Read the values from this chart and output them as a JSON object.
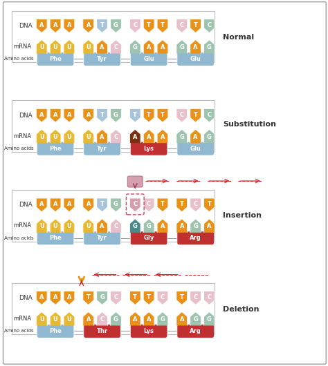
{
  "bg_color": "#ffffff",
  "orange": "#E8921A",
  "yellow": "#E8B830",
  "light_blue": "#A8C4D8",
  "light_green": "#9EC4B0",
  "light_pink": "#E8C0CC",
  "teal_dark": "#4A8A8A",
  "red": "#CC2222",
  "pink_insert": "#D4A0B0",
  "brown_sub": "#7A3010",
  "amino_blue": "#90B8D0",
  "amino_red": "#C03030",
  "border_color": "#aaaaaa",
  "text_color": "#333333",
  "figsize": [
    4.74,
    5.3
  ],
  "dpi": 100,
  "sections": {
    "normal": {
      "label": "Normal",
      "dna": [
        "A",
        "A",
        "A",
        "A",
        "T",
        "G",
        "C",
        "T",
        "T",
        "C",
        "T",
        "C"
      ],
      "mrna": [
        "U",
        "U",
        "U",
        "U",
        "A",
        "C",
        "G",
        "A",
        "A",
        "G",
        "A",
        "G"
      ],
      "dna_colors": [
        "or",
        "or",
        "or",
        "or",
        "lb",
        "lg",
        "lp",
        "or",
        "or",
        "lp",
        "or",
        "lg"
      ],
      "mrna_colors": [
        "yw",
        "yw",
        "yw",
        "yw",
        "or",
        "lp",
        "lg",
        "or",
        "or",
        "lg",
        "or",
        "lg"
      ],
      "amino_labels": [
        "Phe",
        "Tyr",
        "Glu",
        "Glu"
      ],
      "amino_colors": [
        "blue",
        "blue",
        "blue",
        "blue"
      ],
      "spacers": [
        2,
        5,
        8
      ]
    },
    "substitution": {
      "label": "Substitution",
      "dna": [
        "A",
        "A",
        "A",
        "A",
        "T",
        "G",
        "T",
        "T",
        "T",
        "C",
        "T",
        "C"
      ],
      "mrna": [
        "U",
        "U",
        "U",
        "U",
        "A",
        "C",
        "A",
        "A",
        "A",
        "G",
        "A",
        "G"
      ],
      "dna_colors": [
        "or",
        "or",
        "or",
        "or",
        "lb",
        "lg",
        "lb",
        "or",
        "or",
        "lp",
        "or",
        "lg"
      ],
      "mrna_colors": [
        "yw",
        "yw",
        "yw",
        "yw",
        "or",
        "lp",
        "br",
        "or",
        "or",
        "lg",
        "or",
        "lg"
      ],
      "amino_labels": [
        "Phe",
        "Tyr",
        "Lys",
        "Glu"
      ],
      "amino_colors": [
        "blue",
        "blue",
        "red",
        "blue"
      ],
      "spacers": [
        2,
        5,
        8
      ]
    },
    "insertion": {
      "label": "Insertion",
      "dna": [
        "A",
        "A",
        "A",
        "A",
        "T",
        "G",
        "C",
        "C",
        "T",
        "T",
        "C",
        "T"
      ],
      "mrna": [
        "U",
        "U",
        "U",
        "U",
        "A",
        "C",
        "G",
        "G",
        "A",
        "A",
        "G",
        "A"
      ],
      "dna_colors": [
        "or",
        "or",
        "or",
        "or",
        "lb",
        "lg",
        "pk",
        "lp",
        "or",
        "or",
        "lp",
        "or"
      ],
      "mrna_colors": [
        "yw",
        "yw",
        "yw",
        "yw",
        "or",
        "lp",
        "td",
        "lg",
        "or",
        "or",
        "lg",
        "or"
      ],
      "amino_labels": [
        "Phe",
        "Tyr",
        "Gly",
        "Arg"
      ],
      "amino_colors": [
        "blue",
        "blue",
        "red",
        "red"
      ],
      "spacers": [
        2,
        5,
        8
      ],
      "insert_idx": 6
    },
    "deletion": {
      "label": "Deletion",
      "dna": [
        "A",
        "A",
        "A",
        "T",
        "G",
        "C",
        "T",
        "T",
        "C",
        "T",
        "C",
        "C"
      ],
      "mrna": [
        "U",
        "U",
        "U",
        "A",
        "C",
        "G",
        "A",
        "A",
        "G",
        "A",
        "G",
        "G"
      ],
      "dna_colors": [
        "or",
        "or",
        "or",
        "or",
        "lg",
        "lp",
        "or",
        "or",
        "lp",
        "or",
        "lp",
        "lp"
      ],
      "mrna_colors": [
        "yw",
        "yw",
        "yw",
        "or",
        "lp",
        "lg",
        "or",
        "or",
        "lg",
        "or",
        "lg",
        "lg"
      ],
      "amino_labels": [
        "Phe",
        "Thr",
        "Lys",
        "Arg"
      ],
      "amino_colors": [
        "blue",
        "red",
        "red",
        "red"
      ],
      "spacers": [
        2,
        5,
        8
      ],
      "delete_idx": 3
    }
  }
}
